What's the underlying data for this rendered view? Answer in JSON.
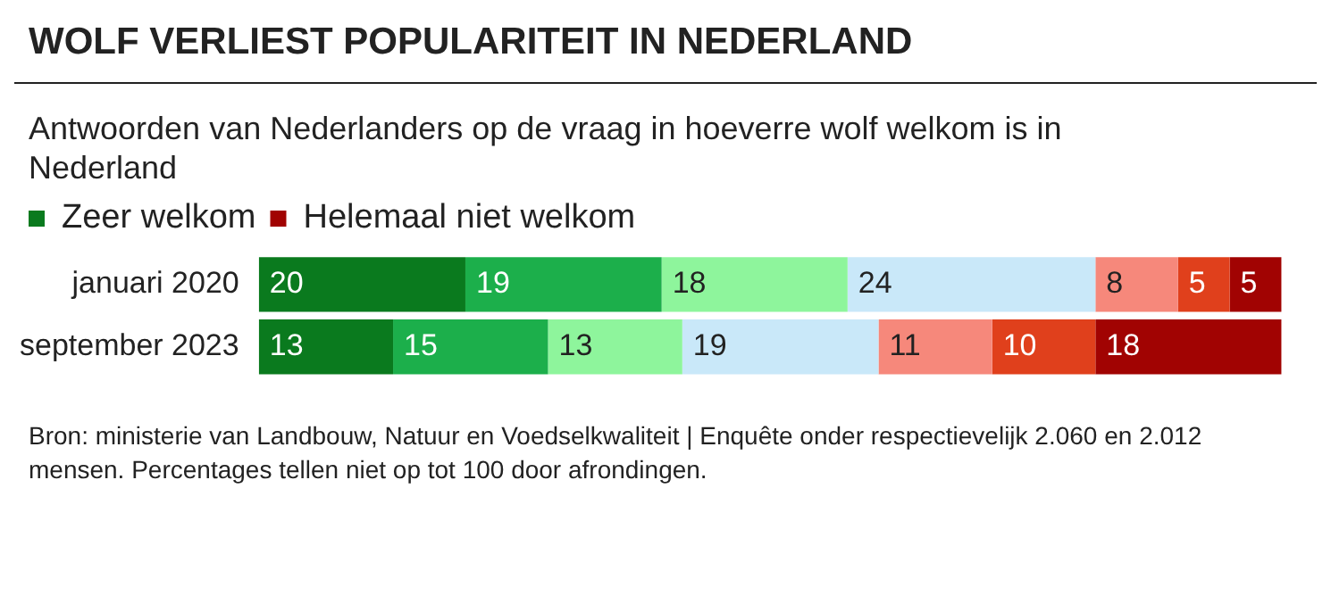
{
  "chart_data": {
    "type": "bar",
    "orientation": "horizontal",
    "stacked": true,
    "title": "WOLF VERLIEST POPULARITEIT IN NEDERLAND",
    "subtitle": "Antwoorden van Nederlanders op de vraag in hoeverre wolf welkom is in Nederland",
    "categories": [
      "januari 2020",
      "september 2023"
    ],
    "series": [
      {
        "name": "Zeer welkom",
        "color": "#0a7a1e",
        "values": [
          20,
          13
        ]
      },
      {
        "color": "#1caf4b",
        "values": [
          19,
          15
        ]
      },
      {
        "color": "#8ef59c",
        "values": [
          18,
          13
        ]
      },
      {
        "color": "#c9e8f9",
        "values": [
          24,
          19
        ]
      },
      {
        "color": "#f6887b",
        "values": [
          8,
          11
        ]
      },
      {
        "color": "#e0401c",
        "values": [
          5,
          10
        ]
      },
      {
        "name": "Helemaal niet welkom",
        "color": "#a10302",
        "values": [
          5,
          18
        ]
      }
    ],
    "data_labels": true,
    "legend": "top left",
    "annotations": [
      "Bron: ministerie van Landbouw, Natuur en Voedselkwaliteit | Enquête onder respectievelijk 2.060 en 2.012 mensen. Percentages tellen niet op tot 100 door afrondingen."
    ]
  }
}
